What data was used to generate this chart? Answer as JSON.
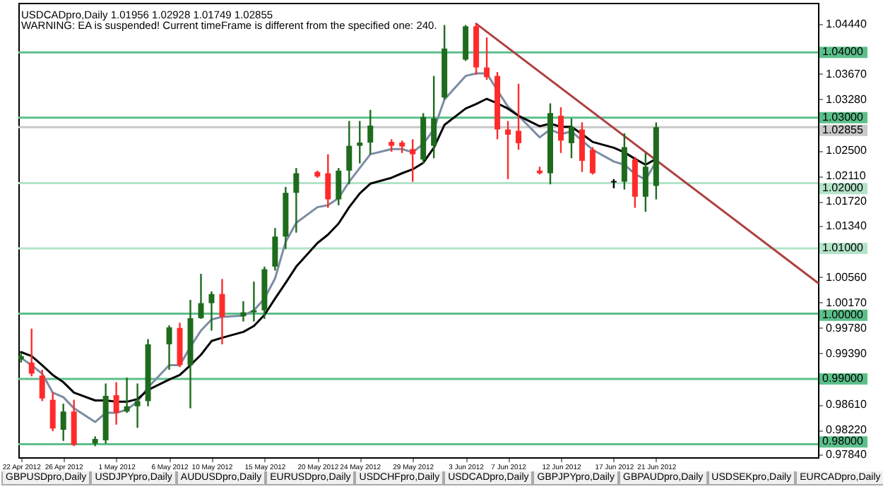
{
  "chart_data": {
    "type": "candlestick",
    "title": "USDCADpro,Daily  1.01956 1.02928 1.01749 1.02855",
    "subtitle": "WARNING: EA is suspended! Current timeFrame is different from the specified one: 240.",
    "annotations": [
      "GBPUSDpro,Daily",
      "USDJPYpro,Daily",
      "AUDUSDpro,Daily",
      "EURUSDpro,Daily",
      "USDCHFpro,Daily",
      "USDCADpro,Daily",
      "GBPJPYpro,Daily",
      "GBPAUDpro,Daily",
      "USDSEKpro,Daily",
      "EURCADpro,Daily"
    ],
    "x": [
      "2012-04-22",
      "2012-04-23",
      "2012-04-24",
      "2012-04-25",
      "2012-04-26",
      "2012-04-27",
      "2012-04-29",
      "2012-04-30",
      "2012-05-01",
      "2012-05-02",
      "2012-05-03",
      "2012-05-04",
      "2012-05-06",
      "2012-05-07",
      "2012-05-08",
      "2012-05-09",
      "2012-05-10",
      "2012-05-11",
      "2012-05-13",
      "2012-05-14",
      "2012-05-15",
      "2012-05-16",
      "2012-05-17",
      "2012-05-18",
      "2012-05-20",
      "2012-05-21",
      "2012-05-22",
      "2012-05-23",
      "2012-05-24",
      "2012-05-25",
      "2012-05-27",
      "2012-05-28",
      "2012-05-29",
      "2012-05-30",
      "2012-05-31",
      "2012-06-01",
      "2012-06-03",
      "2012-06-04",
      "2012-06-05",
      "2012-06-06",
      "2012-06-07",
      "2012-06-08",
      "2012-06-10",
      "2012-06-11",
      "2012-06-12",
      "2012-06-13",
      "2012-06-14",
      "2012-06-15",
      "2012-06-17",
      "2012-06-18",
      "2012-06-19",
      "2012-06-20",
      "2012-06-21"
    ],
    "xlim": [
      "2012-04-21T18:00",
      "2012-07-06T07:00"
    ],
    "xticks": [
      {
        "value": "2012-04-22",
        "label": "22 Apr 2012"
      },
      {
        "value": "2012-04-26",
        "label": "26 Apr 2012"
      },
      {
        "value": "2012-05-01",
        "label": "1 May 2012"
      },
      {
        "value": "2012-05-06",
        "label": "6 May 2012"
      },
      {
        "value": "2012-05-10",
        "label": "10 May 2012"
      },
      {
        "value": "2012-05-15",
        "label": "15 May 2012"
      },
      {
        "value": "2012-05-20",
        "label": "20 May 2012"
      },
      {
        "value": "2012-05-24",
        "label": "24 May 2012"
      },
      {
        "value": "2012-05-29",
        "label": "29 May 2012"
      },
      {
        "value": "2012-06-03",
        "label": "3 Jun 2012"
      },
      {
        "value": "2012-06-07",
        "label": "7 Jun 2012"
      },
      {
        "value": "2012-06-12",
        "label": "12 Jun 2012"
      },
      {
        "value": "2012-06-17",
        "label": "17 Jun 2012"
      },
      {
        "value": "2012-06-21",
        "label": "21 Jun 2012"
      }
    ],
    "ylim": [
      0.978,
      1.0476
    ],
    "yticks": [
      {
        "value": 1.0444,
        "label": "1.04440"
      },
      {
        "value": 1.0367,
        "label": "1.03670"
      },
      {
        "value": 1.0328,
        "label": "1.03280"
      },
      {
        "value": 1.025,
        "label": "1.02500"
      },
      {
        "value": 1.0211,
        "label": "1.02110"
      },
      {
        "value": 1.0172,
        "label": "1.01720"
      },
      {
        "value": 1.0134,
        "label": "1.01340"
      },
      {
        "value": 1.0056,
        "label": "1.00560"
      },
      {
        "value": 1.0017,
        "label": "1.00170"
      },
      {
        "value": 0.9978,
        "label": "0.99780"
      },
      {
        "value": 0.9939,
        "label": "0.99390"
      },
      {
        "value": 0.9861,
        "label": "0.98610"
      },
      {
        "value": 0.9822,
        "label": "0.98220"
      },
      {
        "value": 0.9784,
        "label": "0.97840"
      }
    ],
    "ref_lines": [
      {
        "axis": "y",
        "value": 1.04,
        "label": "1.04000",
        "color": "#5cbf8a"
      },
      {
        "axis": "y",
        "value": 1.03,
        "label": "1.03000",
        "color": "#5cbf8a"
      },
      {
        "axis": "y",
        "value": 1.02855,
        "label": "1.02855",
        "color": "#c8c8c8"
      },
      {
        "axis": "y",
        "value": 1.02,
        "label": "1.02000",
        "color": "#b3e3c8"
      },
      {
        "axis": "y",
        "value": 1.01,
        "label": "1.01000",
        "color": "#b3e3c8"
      },
      {
        "axis": "y",
        "value": 1.0,
        "label": "1.00000",
        "color": "#5cbf8a"
      },
      {
        "axis": "y",
        "value": 0.99,
        "label": "0.99000",
        "color": "#5cbf8a"
      },
      {
        "axis": "y",
        "value": 0.98,
        "label": "0.98000",
        "color": "#5cbf8a"
      }
    ],
    "series": [
      {
        "type": "candlestick",
        "ohlc": [
          [
            0.993,
            0.994,
            0.9925,
            0.9935
          ],
          [
            0.9925,
            0.9977,
            0.9904,
            0.9908
          ],
          [
            0.9905,
            0.9914,
            0.9866,
            0.987
          ],
          [
            0.9868,
            0.9879,
            0.982,
            0.9824
          ],
          [
            0.9822,
            0.9862,
            0.9805,
            0.985
          ],
          [
            0.985,
            0.9868,
            0.9797,
            0.9799
          ],
          [
            0.9801,
            0.9812,
            0.9797,
            0.9808
          ],
          [
            0.9806,
            0.9893,
            0.9801,
            0.9874
          ],
          [
            0.9875,
            0.9895,
            0.983,
            0.9848
          ],
          [
            0.985,
            0.9902,
            0.9848,
            0.9858
          ],
          [
            0.9858,
            0.9893,
            0.9825,
            0.9866
          ],
          [
            0.9866,
            0.9961,
            0.9858,
            0.9953
          ],
          [
            0.9953,
            0.9982,
            0.9914,
            0.9979
          ],
          [
            0.9978,
            0.9986,
            0.9918,
            0.9921
          ],
          [
            0.9921,
            1.0021,
            0.9855,
            0.9993
          ],
          [
            0.9993,
            1.0061,
            0.9992,
            1.0016
          ],
          [
            1.0016,
            1.0034,
            0.9974,
            1.003
          ],
          [
            1.003,
            1.0053,
            0.9953,
            0.9995
          ],
          [
            0.9996,
            1.0019,
            0.9988,
            1.0002
          ],
          [
            1.0002,
            1.0049,
            0.9988,
            1.0005
          ],
          [
            1.0005,
            1.0072,
            0.9992,
            1.0068
          ],
          [
            1.0072,
            1.0131,
            1.0066,
            1.0118
          ],
          [
            1.0118,
            1.0194,
            1.0099,
            1.0185
          ],
          [
            1.0185,
            1.0223,
            1.0124,
            1.0215
          ],
          [
            1.0217,
            1.0219,
            1.0208,
            1.021
          ],
          [
            1.0215,
            1.0244,
            1.0162,
            1.0175
          ],
          [
            1.0175,
            1.0223,
            1.0166,
            1.0219
          ],
          [
            1.0219,
            1.0295,
            1.0198,
            1.0257
          ],
          [
            1.0257,
            1.0295,
            1.023,
            1.0262
          ],
          [
            1.0262,
            1.0312,
            1.0244,
            1.0288
          ],
          [
            1.0263,
            1.0267,
            1.0248,
            1.0257
          ],
          [
            1.0262,
            1.0265,
            1.0246,
            1.0256
          ],
          [
            1.0252,
            1.0267,
            1.0202,
            1.0244
          ],
          [
            1.0236,
            1.0307,
            1.023,
            1.0301
          ],
          [
            1.0257,
            1.0364,
            1.0238,
            1.0299
          ],
          [
            1.0331,
            1.0442,
            1.0328,
            1.0406
          ],
          [
            1.0389,
            1.0442,
            1.0387,
            1.044
          ],
          [
            1.044,
            1.0444,
            1.0366,
            1.0377
          ],
          [
            1.0377,
            1.0423,
            1.0358,
            1.0362
          ],
          [
            1.0364,
            1.037,
            1.0267,
            1.0282
          ],
          [
            1.0282,
            1.0295,
            1.0206,
            1.0274
          ],
          [
            1.028,
            1.0352,
            1.0251,
            1.0261
          ],
          [
            1.0219,
            1.0225,
            1.0213,
            1.0215
          ],
          [
            1.0215,
            1.0322,
            1.0198,
            1.0307
          ],
          [
            1.0303,
            1.0316,
            1.0246,
            1.0265
          ],
          [
            1.0261,
            1.0299,
            1.0238,
            1.0286
          ],
          [
            1.0282,
            1.0293,
            1.0217,
            1.0234
          ],
          [
            1.0251,
            1.0255,
            1.0213,
            1.0215
          ],
          [
            1.0201,
            1.0206,
            1.0192,
            1.0203
          ],
          [
            1.0202,
            1.0276,
            1.019,
            1.0255
          ],
          [
            1.0236,
            1.024,
            1.0162,
            1.0179
          ],
          [
            1.0179,
            1.0246,
            1.0156,
            1.0225
          ],
          [
            1.01956,
            1.02928,
            1.01749,
            1.02855
          ]
        ],
        "colors": [
          "#1e6b1e",
          "#ff2b2b",
          "#ff2b2b",
          "#ff2b2b",
          "#1e6b1e",
          "#ff2b2b",
          "#1e6b1e",
          "#1e6b1e",
          "#ff2b2b",
          "#1e6b1e",
          "#1e6b1e",
          "#1e6b1e",
          "#1e6b1e",
          "#ff2b2b",
          "#1e6b1e",
          "#1e6b1e",
          "#1e6b1e",
          "#ff2b2b",
          "#1e6b1e",
          "#1e6b1e",
          "#1e6b1e",
          "#1e6b1e",
          "#1e6b1e",
          "#1e6b1e",
          "#ff2b2b",
          "#ff2b2b",
          "#1e6b1e",
          "#1e6b1e",
          "#1e6b1e",
          "#1e6b1e",
          "#ff2b2b",
          "#ff2b2b",
          "#ff2b2b",
          "#1e6b1e",
          "#1e6b1e",
          "#1e6b1e",
          "#1e6b1e",
          "#ff2b2b",
          "#ff2b2b",
          "#ff2b2b",
          "#ff2b2b",
          "#ff2b2b",
          "#ff2b2b",
          "#1e6b1e",
          "#ff2b2b",
          "#1e6b1e",
          "#ff2b2b",
          "#ff2b2b",
          "#000000",
          "#1e6b1e",
          "#ff2b2b",
          "#1e6b1e",
          "#1e6b1e"
        ]
      },
      {
        "type": "line",
        "color": "#7b8ca3",
        "values": [
          0.9932,
          0.9921,
          0.9908,
          0.9879,
          0.9872,
          0.9855,
          0.9834,
          0.9848,
          0.9848,
          0.9853,
          0.9865,
          0.9887,
          0.9921,
          0.9921,
          0.9949,
          0.9974,
          0.9991,
          0.9995,
          0.9997,
          1.0005,
          1.0023,
          1.0054,
          1.011,
          1.0139,
          1.0163,
          1.0166,
          1.0177,
          1.0202,
          1.0223,
          1.0244,
          1.0252,
          1.0252,
          1.0247,
          1.026,
          1.0282,
          1.0328,
          1.0364,
          1.0368,
          1.0368,
          1.0342,
          1.0317,
          1.0303,
          1.027,
          1.0282,
          1.0275,
          1.0279,
          1.0265,
          1.0251,
          1.0233,
          1.0228,
          1.0214,
          1.0205,
          1.0233
        ]
      },
      {
        "type": "line",
        "color": "#000000",
        "values": [
          0.9941,
          0.9935,
          0.9921,
          0.9906,
          0.9895,
          0.9879,
          0.9867,
          0.9867,
          0.9865,
          0.9865,
          0.9869,
          0.9883,
          0.9899,
          0.9906,
          0.9921,
          0.9937,
          0.9958,
          0.9963,
          0.9972,
          0.9981,
          0.9998,
          1.0023,
          1.0047,
          1.0072,
          1.0108,
          1.0121,
          1.0138,
          1.0163,
          1.0184,
          1.0199,
          1.0208,
          1.0215,
          1.0221,
          1.0231,
          1.0254,
          1.0289,
          1.0314,
          1.0321,
          1.0329,
          1.0322,
          1.0314,
          1.0303,
          1.0287,
          1.0291,
          1.0286,
          1.0286,
          1.0275,
          1.0263,
          1.0254,
          1.0247,
          1.0237,
          1.0228,
          1.0237
        ]
      },
      {
        "type": "line",
        "color": "#b04040",
        "x": [
          "2012-06-04",
          "2012-07-06T07:00"
        ],
        "values": [
          1.0444,
          1.0047
        ]
      }
    ]
  }
}
